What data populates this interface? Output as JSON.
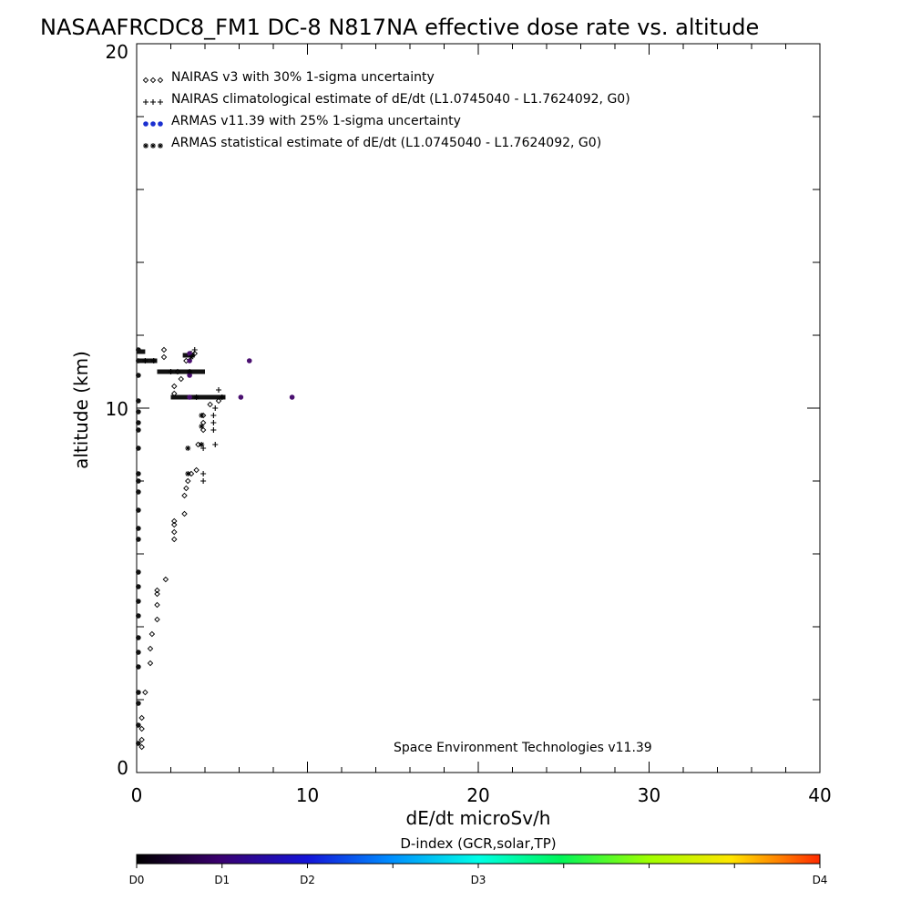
{
  "chart_data": {
    "type": "scatter",
    "title": "NASAAFRCDC8_FM1 DC-8   N817NA effective dose rate vs. altitude",
    "xlabel": "dE/dt microSv/h",
    "ylabel": "altitude (km)",
    "xlim": [
      0,
      40
    ],
    "ylim": [
      0,
      20
    ],
    "x_ticks": [
      "0",
      "10",
      "20",
      "30",
      "40"
    ],
    "y_ticks": [
      "0",
      "10",
      "20"
    ],
    "grid": false,
    "legend_placement": "top-left",
    "legend": [
      {
        "label": "NAIRAS v3 with 30% 1-sigma uncertainty",
        "marker": "diamond",
        "color": "#000000"
      },
      {
        "label": "NAIRAS climatological estimate of dE/dt (L1.0745040 - L1.7624092, G0)",
        "marker": "plus",
        "color": "#000000"
      },
      {
        "label": "ARMAS v11.39 with 25% 1-sigma uncertainty",
        "marker": "dot",
        "color": "#1a2fd0"
      },
      {
        "label": "ARMAS statistical estimate of dE/dt (L1.0745040 - L1.7624092, G0)",
        "marker": "asterisk",
        "color": "#000000"
      }
    ],
    "credit": "Space Environment Technologies v11.39",
    "series": [
      {
        "name": "NAIRAS v3 with 30% 1-sigma uncertainty",
        "marker": "diamond",
        "points": [
          [
            0.3,
            0.7
          ],
          [
            0.3,
            0.9
          ],
          [
            0.3,
            1.2
          ],
          [
            0.3,
            1.5
          ],
          [
            0.5,
            2.2
          ],
          [
            0.8,
            3.0
          ],
          [
            0.8,
            3.4
          ],
          [
            0.9,
            3.8
          ],
          [
            1.2,
            4.2
          ],
          [
            1.2,
            4.6
          ],
          [
            1.2,
            4.9
          ],
          [
            1.2,
            5.0
          ],
          [
            1.7,
            5.3
          ],
          [
            2.2,
            6.4
          ],
          [
            2.2,
            6.6
          ],
          [
            2.2,
            6.8
          ],
          [
            2.2,
            6.9
          ],
          [
            2.8,
            7.1
          ],
          [
            2.8,
            7.6
          ],
          [
            2.9,
            7.8
          ],
          [
            3.0,
            8.0
          ],
          [
            3.2,
            8.2
          ],
          [
            3.5,
            8.3
          ],
          [
            3.6,
            9.0
          ],
          [
            3.9,
            9.4
          ],
          [
            3.9,
            9.6
          ],
          [
            3.9,
            9.8
          ],
          [
            4.3,
            10.1
          ],
          [
            4.8,
            10.2
          ],
          [
            2.2,
            10.4
          ],
          [
            2.2,
            10.6
          ],
          [
            2.6,
            10.8
          ],
          [
            2.4,
            11.0
          ],
          [
            1.6,
            11.4
          ],
          [
            1.6,
            11.6
          ],
          [
            2.9,
            11.3
          ],
          [
            3.4,
            11.5
          ]
        ]
      },
      {
        "name": "NAIRAS climatological estimate of dE/dt (L1.0745040 - L1.7624092, G0)",
        "marker": "plus",
        "points": [
          [
            3.9,
            8.0
          ],
          [
            3.9,
            8.2
          ],
          [
            3.9,
            8.9
          ],
          [
            4.6,
            9.0
          ],
          [
            4.5,
            9.4
          ],
          [
            4.5,
            9.6
          ],
          [
            4.5,
            9.8
          ],
          [
            4.6,
            10.0
          ],
          [
            5.0,
            10.3
          ],
          [
            4.8,
            10.5
          ],
          [
            0.5,
            11.3
          ],
          [
            1.0,
            11.3
          ],
          [
            3.2,
            11.5
          ],
          [
            3.4,
            11.6
          ],
          [
            2.0,
            11.0
          ]
        ]
      },
      {
        "name": "ARMAS v11.39 with 25% 1-sigma uncertainty",
        "marker": "dot",
        "points": [
          [
            0.1,
            0.8
          ],
          [
            0.1,
            1.3
          ],
          [
            0.1,
            1.9
          ],
          [
            0.1,
            2.2
          ],
          [
            0.1,
            2.9
          ],
          [
            0.1,
            3.3
          ],
          [
            0.1,
            3.7
          ],
          [
            0.1,
            4.3
          ],
          [
            0.1,
            4.7
          ],
          [
            0.1,
            5.1
          ],
          [
            0.1,
            5.5
          ],
          [
            0.1,
            6.4
          ],
          [
            0.1,
            6.7
          ],
          [
            0.1,
            7.2
          ],
          [
            0.1,
            7.7
          ],
          [
            0.1,
            8.0
          ],
          [
            0.1,
            8.2
          ],
          [
            0.1,
            8.9
          ],
          [
            0.1,
            9.4
          ],
          [
            0.1,
            9.6
          ],
          [
            0.1,
            9.9
          ],
          [
            0.1,
            10.2
          ],
          [
            0.1,
            10.9
          ],
          [
            0.1,
            11.3
          ],
          [
            0.1,
            11.6
          ],
          [
            3.1,
            10.3
          ],
          [
            3.1,
            10.9
          ],
          [
            3.1,
            11.3
          ],
          [
            3.1,
            11.5
          ],
          [
            6.1,
            10.3
          ],
          [
            6.6,
            11.3
          ],
          [
            9.1,
            10.3
          ]
        ]
      },
      {
        "name": "ARMAS statistical estimate of dE/dt (L1.0745040 - L1.7624092, G0)",
        "marker": "asterisk",
        "points": [
          [
            3.0,
            8.2
          ],
          [
            3.0,
            8.9
          ],
          [
            3.8,
            9.0
          ],
          [
            3.8,
            9.5
          ],
          [
            3.8,
            9.8
          ],
          [
            3.5,
            10.3
          ],
          [
            3.1,
            11.0
          ],
          [
            3.2,
            11.4
          ]
        ]
      }
    ],
    "bands": [
      {
        "y": 10.3,
        "x_from": 2.0,
        "x_to": 5.2
      },
      {
        "y": 11.0,
        "x_from": 1.2,
        "x_to": 4.0
      },
      {
        "y": 11.3,
        "x_from": 0.0,
        "x_to": 1.2
      },
      {
        "y": 11.45,
        "x_from": 2.7,
        "x_to": 3.4
      },
      {
        "y": 11.55,
        "x_from": 0.0,
        "x_to": 0.5
      }
    ],
    "colorbar": {
      "title": "D-index (GCR,solar,TP)",
      "ticks": [
        {
          "label": "D0",
          "pos": 0.0
        },
        {
          "label": "D1",
          "pos": 0.125
        },
        {
          "label": "D2",
          "pos": 0.25
        },
        {
          "label": "D3",
          "pos": 0.5
        },
        {
          "label": "D4",
          "pos": 1.0
        }
      ],
      "stops": [
        {
          "pos": 0.0,
          "color": "#000000"
        },
        {
          "pos": 0.12,
          "color": "#3a006e"
        },
        {
          "pos": 0.25,
          "color": "#1414d8"
        },
        {
          "pos": 0.37,
          "color": "#008cff"
        },
        {
          "pos": 0.5,
          "color": "#00ffe6"
        },
        {
          "pos": 0.62,
          "color": "#00f55a"
        },
        {
          "pos": 0.75,
          "color": "#a0ff00"
        },
        {
          "pos": 0.87,
          "color": "#ffe600"
        },
        {
          "pos": 1.0,
          "color": "#ff2a00"
        }
      ]
    }
  }
}
